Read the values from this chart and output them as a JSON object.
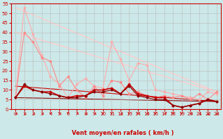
{
  "background_color": "#cce8e8",
  "grid_color": "#bbbbbb",
  "xlabel": "Vent moyen/en rafales ( km/h )",
  "xlabel_color": "#cc0000",
  "xlabel_fontsize": 6,
  "xtick_fontsize": 5,
  "ytick_fontsize": 5,
  "xlim": [
    -0.5,
    23.5
  ],
  "ylim": [
    0,
    55
  ],
  "yticks": [
    0,
    5,
    10,
    15,
    20,
    25,
    30,
    35,
    40,
    45,
    50,
    55
  ],
  "xticks": [
    0,
    1,
    2,
    3,
    4,
    5,
    6,
    7,
    8,
    9,
    10,
    11,
    12,
    13,
    14,
    15,
    16,
    17,
    18,
    19,
    20,
    21,
    22,
    23
  ],
  "series": [
    {
      "x": [
        0,
        1,
        2,
        3,
        4,
        5,
        6,
        7,
        8,
        9,
        10,
        11,
        12,
        13,
        14,
        15,
        16,
        17,
        18,
        19,
        20,
        21,
        22,
        23
      ],
      "y": [
        6,
        53,
        39,
        28,
        17,
        13,
        6,
        13,
        16,
        12,
        11,
        35,
        26,
        15,
        24,
        23,
        10,
        9,
        8,
        7,
        6,
        5,
        9,
        8
      ],
      "color": "#ffaaaa",
      "linewidth": 0.8,
      "marker": "D",
      "markersize": 1.5,
      "zorder": 2
    },
    {
      "x": [
        0,
        1,
        2,
        3,
        4,
        5,
        6,
        7,
        8,
        9,
        10,
        11,
        12,
        13,
        14,
        15,
        16,
        17,
        18,
        19,
        20,
        21,
        22,
        23
      ],
      "y": [
        6,
        40,
        35,
        27,
        25,
        12,
        17,
        10,
        6,
        12,
        7,
        15,
        14,
        8,
        9,
        7,
        6,
        7,
        6,
        7,
        5,
        8,
        5,
        9
      ],
      "color": "#ff8888",
      "linewidth": 0.8,
      "marker": "D",
      "markersize": 1.5,
      "zorder": 2
    },
    {
      "x": [
        0,
        23
      ],
      "y": [
        53,
        9
      ],
      "color": "#ffcccc",
      "linewidth": 1.0,
      "marker": null,
      "markersize": 0,
      "zorder": 1
    },
    {
      "x": [
        0,
        23
      ],
      "y": [
        40,
        9
      ],
      "color": "#ffcccc",
      "linewidth": 1.0,
      "marker": null,
      "markersize": 0,
      "zorder": 1
    },
    {
      "x": [
        0,
        1,
        2,
        3,
        4,
        5,
        6,
        7,
        8,
        9,
        10,
        11,
        12,
        13,
        14,
        15,
        16,
        17,
        18,
        19,
        20,
        21,
        22,
        23
      ],
      "y": [
        6,
        12,
        10,
        9,
        9,
        7,
        6,
        7,
        7,
        10,
        10,
        11,
        8,
        13,
        8,
        7,
        6,
        6,
        2,
        1,
        2,
        3,
        5,
        4
      ],
      "color": "#cc0000",
      "linewidth": 1.2,
      "marker": "D",
      "markersize": 1.5,
      "zorder": 3
    },
    {
      "x": [
        0,
        1,
        2,
        3,
        4,
        5,
        6,
        7,
        8,
        9,
        10,
        11,
        12,
        13,
        14,
        15,
        16,
        17,
        18,
        19,
        20,
        21,
        22,
        23
      ],
      "y": [
        6,
        13,
        10,
        9,
        8,
        7,
        6,
        6,
        7,
        9,
        9,
        10,
        8,
        12,
        7,
        6,
        5,
        5,
        2,
        1,
        2,
        3,
        5,
        4
      ],
      "color": "#880000",
      "linewidth": 0.8,
      "marker": "D",
      "markersize": 1.5,
      "zorder": 3
    },
    {
      "x": [
        0,
        23
      ],
      "y": [
        12,
        4
      ],
      "color": "#cc0000",
      "linewidth": 0.8,
      "marker": null,
      "markersize": 0,
      "zorder": 1
    },
    {
      "x": [
        0,
        23
      ],
      "y": [
        6,
        4
      ],
      "color": "#880000",
      "linewidth": 0.8,
      "marker": null,
      "markersize": 0,
      "zorder": 1
    }
  ],
  "arrow_color": "#cc0000",
  "arrow_angles": [
    225,
    225,
    225,
    225,
    270,
    225,
    270,
    225,
    225,
    225,
    270,
    270,
    225,
    270,
    270,
    225,
    270,
    225,
    270,
    270,
    225,
    225,
    180,
    180
  ]
}
